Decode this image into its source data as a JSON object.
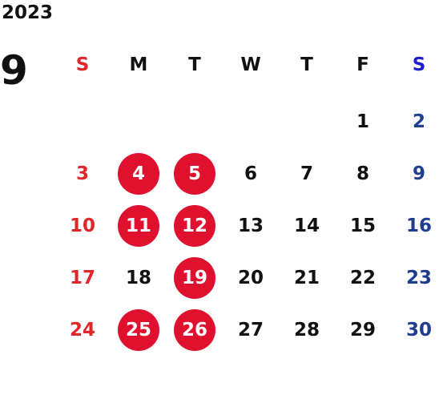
{
  "year": "2023",
  "month": "9",
  "colors": {
    "sunday": "#e0262b",
    "saturday": "#1e3d8f",
    "weekday": "#111111",
    "highlight_fill": "#e0102f",
    "highlight_text": "#ffffff"
  },
  "weekdays": [
    {
      "label": "S",
      "color": "#e0262b"
    },
    {
      "label": "M",
      "color": "#111111"
    },
    {
      "label": "T",
      "color": "#111111"
    },
    {
      "label": "W",
      "color": "#111111"
    },
    {
      "label": "T",
      "color": "#111111"
    },
    {
      "label": "F",
      "color": "#111111"
    },
    {
      "label": "S",
      "color": "#1a1fd0"
    }
  ],
  "weeks": [
    [
      null,
      null,
      null,
      null,
      null,
      {
        "day": "1"
      },
      {
        "day": "2"
      }
    ],
    [
      {
        "day": "3"
      },
      {
        "day": "4",
        "highlight": true
      },
      {
        "day": "5",
        "highlight": true
      },
      {
        "day": "6"
      },
      {
        "day": "7"
      },
      {
        "day": "8"
      },
      {
        "day": "9"
      }
    ],
    [
      {
        "day": "10"
      },
      {
        "day": "11",
        "highlight": true
      },
      {
        "day": "12",
        "highlight": true
      },
      {
        "day": "13"
      },
      {
        "day": "14"
      },
      {
        "day": "15"
      },
      {
        "day": "16"
      }
    ],
    [
      {
        "day": "17"
      },
      {
        "day": "18"
      },
      {
        "day": "19",
        "highlight": true
      },
      {
        "day": "20"
      },
      {
        "day": "21"
      },
      {
        "day": "22"
      },
      {
        "day": "23"
      }
    ],
    [
      {
        "day": "24"
      },
      {
        "day": "25",
        "highlight": true
      },
      {
        "day": "26",
        "highlight": true
      },
      {
        "day": "27"
      },
      {
        "day": "28"
      },
      {
        "day": "29"
      },
      {
        "day": "30"
      }
    ]
  ]
}
